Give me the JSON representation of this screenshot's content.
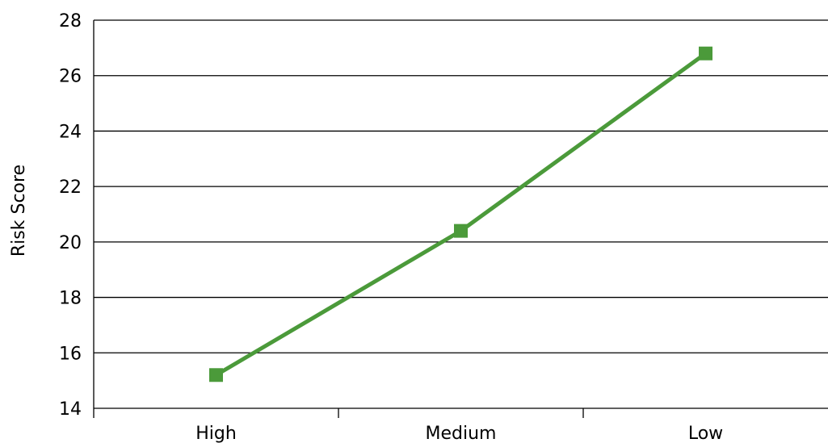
{
  "chart_data": {
    "type": "line",
    "title": "",
    "xlabel": "",
    "ylabel": "Risk Score",
    "categories": [
      "High",
      "Medium",
      "Low"
    ],
    "series": [
      {
        "values": [
          15.2,
          20.4,
          26.8
        ]
      }
    ],
    "ylim": [
      14,
      28
    ],
    "yticks": [
      14,
      16,
      18,
      20,
      22,
      24,
      26,
      28
    ],
    "ytick_labels": [
      "14",
      "16",
      "18",
      "20",
      "22",
      "24",
      "26",
      "28"
    ],
    "grid": "horizontal",
    "legend": "none",
    "colors": {
      "line": "#4b9a3a",
      "marker": "#4b9a3a",
      "grid": "#000000",
      "axis": "#000000"
    },
    "marker": "square"
  }
}
